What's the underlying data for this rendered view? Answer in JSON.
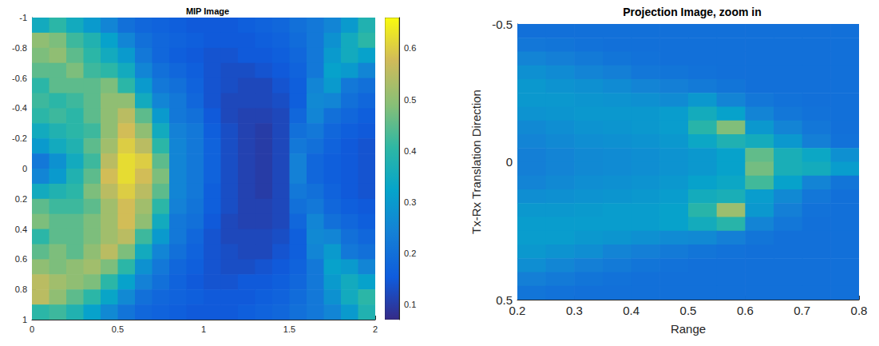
{
  "chart_data": [
    {
      "type": "heatmap",
      "title": "MIP Image",
      "x": [
        0.05,
        0.15,
        0.25,
        0.35,
        0.45,
        0.55,
        0.65,
        0.75,
        0.85,
        0.95,
        1.05,
        1.15,
        1.25,
        1.35,
        1.45,
        1.55,
        1.65,
        1.75,
        1.85,
        1.95
      ],
      "y": [
        -0.95,
        -0.85,
        -0.75,
        -0.65,
        -0.55,
        -0.45,
        -0.35,
        -0.25,
        -0.15,
        -0.05,
        0.05,
        0.15,
        0.25,
        0.35,
        0.45,
        0.55,
        0.65,
        0.75,
        0.85,
        0.95
      ],
      "values": [
        [
          0.35,
          0.4,
          0.35,
          0.3,
          0.25,
          0.2,
          0.18,
          0.17,
          0.16,
          0.15,
          0.15,
          0.15,
          0.16,
          0.17,
          0.18,
          0.2,
          0.22,
          0.25,
          0.3,
          0.38
        ],
        [
          0.5,
          0.48,
          0.42,
          0.38,
          0.32,
          0.25,
          0.2,
          0.18,
          0.17,
          0.16,
          0.15,
          0.15,
          0.15,
          0.16,
          0.17,
          0.19,
          0.22,
          0.28,
          0.35,
          0.4
        ],
        [
          0.48,
          0.5,
          0.45,
          0.4,
          0.35,
          0.3,
          0.22,
          0.18,
          0.16,
          0.15,
          0.14,
          0.14,
          0.15,
          0.15,
          0.16,
          0.18,
          0.22,
          0.3,
          0.35,
          0.32
        ],
        [
          0.45,
          0.45,
          0.48,
          0.42,
          0.4,
          0.35,
          0.25,
          0.2,
          0.18,
          0.16,
          0.14,
          0.13,
          0.13,
          0.14,
          0.15,
          0.17,
          0.22,
          0.32,
          0.3,
          0.25
        ],
        [
          0.4,
          0.45,
          0.45,
          0.45,
          0.48,
          0.4,
          0.3,
          0.22,
          0.2,
          0.17,
          0.14,
          0.13,
          0.12,
          0.12,
          0.14,
          0.16,
          0.25,
          0.3,
          0.22,
          0.2
        ],
        [
          0.42,
          0.4,
          0.42,
          0.45,
          0.5,
          0.5,
          0.35,
          0.25,
          0.22,
          0.18,
          0.14,
          0.12,
          0.12,
          0.12,
          0.13,
          0.16,
          0.26,
          0.25,
          0.2,
          0.18
        ],
        [
          0.4,
          0.42,
          0.4,
          0.45,
          0.5,
          0.55,
          0.45,
          0.3,
          0.22,
          0.2,
          0.15,
          0.12,
          0.11,
          0.11,
          0.12,
          0.18,
          0.25,
          0.2,
          0.18,
          0.16
        ],
        [
          0.35,
          0.38,
          0.4,
          0.42,
          0.5,
          0.58,
          0.5,
          0.35,
          0.24,
          0.22,
          0.16,
          0.13,
          0.11,
          0.1,
          0.12,
          0.2,
          0.22,
          0.18,
          0.16,
          0.15
        ],
        [
          0.3,
          0.35,
          0.38,
          0.45,
          0.52,
          0.6,
          0.55,
          0.4,
          0.25,
          0.22,
          0.17,
          0.13,
          0.11,
          0.1,
          0.12,
          0.22,
          0.2,
          0.17,
          0.15,
          0.14
        ],
        [
          0.22,
          0.28,
          0.35,
          0.42,
          0.55,
          0.62,
          0.6,
          0.45,
          0.25,
          0.22,
          0.17,
          0.13,
          0.11,
          0.1,
          0.12,
          0.24,
          0.18,
          0.16,
          0.15,
          0.14
        ],
        [
          0.25,
          0.3,
          0.38,
          0.45,
          0.58,
          0.62,
          0.58,
          0.48,
          0.25,
          0.22,
          0.17,
          0.13,
          0.11,
          0.1,
          0.12,
          0.24,
          0.18,
          0.16,
          0.15,
          0.14
        ],
        [
          0.35,
          0.38,
          0.4,
          0.48,
          0.55,
          0.6,
          0.55,
          0.45,
          0.25,
          0.22,
          0.16,
          0.13,
          0.11,
          0.1,
          0.12,
          0.22,
          0.2,
          0.17,
          0.15,
          0.14
        ],
        [
          0.45,
          0.42,
          0.42,
          0.45,
          0.52,
          0.58,
          0.52,
          0.4,
          0.24,
          0.21,
          0.16,
          0.13,
          0.11,
          0.11,
          0.12,
          0.2,
          0.22,
          0.18,
          0.16,
          0.15
        ],
        [
          0.48,
          0.45,
          0.45,
          0.48,
          0.52,
          0.58,
          0.5,
          0.35,
          0.22,
          0.2,
          0.15,
          0.12,
          0.11,
          0.11,
          0.12,
          0.18,
          0.25,
          0.2,
          0.18,
          0.16
        ],
        [
          0.4,
          0.45,
          0.45,
          0.48,
          0.52,
          0.55,
          0.42,
          0.3,
          0.22,
          0.18,
          0.14,
          0.12,
          0.12,
          0.12,
          0.13,
          0.16,
          0.26,
          0.25,
          0.2,
          0.18
        ],
        [
          0.45,
          0.48,
          0.45,
          0.5,
          0.55,
          0.48,
          0.35,
          0.25,
          0.2,
          0.17,
          0.14,
          0.13,
          0.12,
          0.12,
          0.14,
          0.16,
          0.25,
          0.3,
          0.22,
          0.2
        ],
        [
          0.5,
          0.48,
          0.5,
          0.52,
          0.48,
          0.4,
          0.28,
          0.22,
          0.18,
          0.16,
          0.14,
          0.13,
          0.13,
          0.14,
          0.15,
          0.17,
          0.22,
          0.32,
          0.3,
          0.25
        ],
        [
          0.55,
          0.52,
          0.5,
          0.48,
          0.4,
          0.32,
          0.24,
          0.2,
          0.17,
          0.15,
          0.14,
          0.14,
          0.15,
          0.15,
          0.16,
          0.18,
          0.22,
          0.3,
          0.35,
          0.32
        ],
        [
          0.55,
          0.5,
          0.45,
          0.4,
          0.33,
          0.26,
          0.2,
          0.18,
          0.17,
          0.16,
          0.15,
          0.15,
          0.15,
          0.16,
          0.17,
          0.19,
          0.22,
          0.28,
          0.35,
          0.4
        ],
        [
          0.4,
          0.42,
          0.38,
          0.32,
          0.26,
          0.21,
          0.18,
          0.17,
          0.16,
          0.15,
          0.15,
          0.15,
          0.16,
          0.17,
          0.18,
          0.2,
          0.22,
          0.25,
          0.3,
          0.38
        ]
      ],
      "xlim": [
        0,
        2
      ],
      "ylim": [
        1,
        -1
      ],
      "xticks": [
        0,
        0.5,
        1,
        1.5,
        2
      ],
      "yticks": [
        -1,
        -0.8,
        -0.6,
        -0.4,
        -0.2,
        0,
        0.2,
        0.4,
        0.6,
        0.8,
        1
      ],
      "colorbar": {
        "range": [
          0.07,
          0.66
        ],
        "ticks": [
          0.1,
          0.2,
          0.3,
          0.4,
          0.5,
          0.6
        ]
      }
    },
    {
      "type": "heatmap",
      "title": "Projection Image, zoom in",
      "xlabel": "Range",
      "ylabel": "Tx-Rx Translation Direction",
      "x": [
        0.225,
        0.275,
        0.325,
        0.375,
        0.425,
        0.475,
        0.525,
        0.575,
        0.625,
        0.675,
        0.725,
        0.775
      ],
      "y": [
        -0.475,
        -0.425,
        -0.375,
        -0.325,
        -0.275,
        -0.225,
        -0.175,
        -0.125,
        -0.075,
        -0.025,
        0.025,
        0.075,
        0.125,
        0.175,
        0.225,
        0.275,
        0.325,
        0.375,
        0.425,
        0.475
      ],
      "values": [
        [
          0.22,
          0.22,
          0.22,
          0.22,
          0.22,
          0.22,
          0.22,
          0.22,
          0.22,
          0.22,
          0.22,
          0.22
        ],
        [
          0.25,
          0.24,
          0.23,
          0.22,
          0.22,
          0.22,
          0.22,
          0.22,
          0.22,
          0.22,
          0.22,
          0.22
        ],
        [
          0.3,
          0.28,
          0.26,
          0.24,
          0.23,
          0.22,
          0.22,
          0.22,
          0.22,
          0.22,
          0.22,
          0.22
        ],
        [
          0.35,
          0.33,
          0.3,
          0.28,
          0.25,
          0.24,
          0.23,
          0.22,
          0.22,
          0.22,
          0.22,
          0.22
        ],
        [
          0.38,
          0.36,
          0.35,
          0.33,
          0.3,
          0.28,
          0.26,
          0.24,
          0.22,
          0.22,
          0.22,
          0.22
        ],
        [
          0.38,
          0.38,
          0.37,
          0.36,
          0.35,
          0.33,
          0.38,
          0.3,
          0.25,
          0.23,
          0.22,
          0.22
        ],
        [
          0.36,
          0.37,
          0.38,
          0.38,
          0.38,
          0.4,
          0.48,
          0.42,
          0.3,
          0.25,
          0.23,
          0.22
        ],
        [
          0.32,
          0.34,
          0.36,
          0.37,
          0.38,
          0.4,
          0.55,
          0.7,
          0.38,
          0.3,
          0.25,
          0.22
        ],
        [
          0.3,
          0.32,
          0.34,
          0.35,
          0.36,
          0.38,
          0.45,
          0.52,
          0.48,
          0.38,
          0.28,
          0.23
        ],
        [
          0.28,
          0.3,
          0.32,
          0.33,
          0.34,
          0.36,
          0.38,
          0.42,
          0.65,
          0.5,
          0.45,
          0.35
        ],
        [
          0.28,
          0.3,
          0.32,
          0.33,
          0.34,
          0.36,
          0.38,
          0.42,
          0.68,
          0.5,
          0.48,
          0.4
        ],
        [
          0.3,
          0.32,
          0.34,
          0.35,
          0.36,
          0.38,
          0.42,
          0.45,
          0.6,
          0.42,
          0.3,
          0.24
        ],
        [
          0.34,
          0.35,
          0.36,
          0.37,
          0.38,
          0.4,
          0.48,
          0.5,
          0.4,
          0.32,
          0.25,
          0.22
        ],
        [
          0.38,
          0.38,
          0.39,
          0.4,
          0.4,
          0.42,
          0.55,
          0.75,
          0.38,
          0.28,
          0.23,
          0.22
        ],
        [
          0.4,
          0.4,
          0.4,
          0.4,
          0.4,
          0.42,
          0.48,
          0.55,
          0.3,
          0.25,
          0.22,
          0.22
        ],
        [
          0.4,
          0.4,
          0.38,
          0.37,
          0.35,
          0.33,
          0.32,
          0.28,
          0.24,
          0.22,
          0.22,
          0.22
        ],
        [
          0.38,
          0.36,
          0.34,
          0.3,
          0.28,
          0.26,
          0.24,
          0.23,
          0.22,
          0.22,
          0.22,
          0.22
        ],
        [
          0.34,
          0.31,
          0.28,
          0.26,
          0.24,
          0.23,
          0.22,
          0.22,
          0.22,
          0.22,
          0.22,
          0.22
        ],
        [
          0.28,
          0.26,
          0.24,
          0.23,
          0.22,
          0.22,
          0.22,
          0.22,
          0.22,
          0.22,
          0.22,
          0.22
        ],
        [
          0.24,
          0.23,
          0.22,
          0.22,
          0.22,
          0.22,
          0.22,
          0.22,
          0.22,
          0.22,
          0.22,
          0.22
        ]
      ],
      "xlim": [
        0.2,
        0.8
      ],
      "ylim": [
        0.5,
        -0.5
      ],
      "xticks": [
        0.2,
        0.3,
        0.4,
        0.5,
        0.6,
        0.7,
        0.8
      ],
      "yticks": [
        -0.5,
        0,
        0.5
      ],
      "color_range": [
        0,
        1
      ]
    }
  ]
}
